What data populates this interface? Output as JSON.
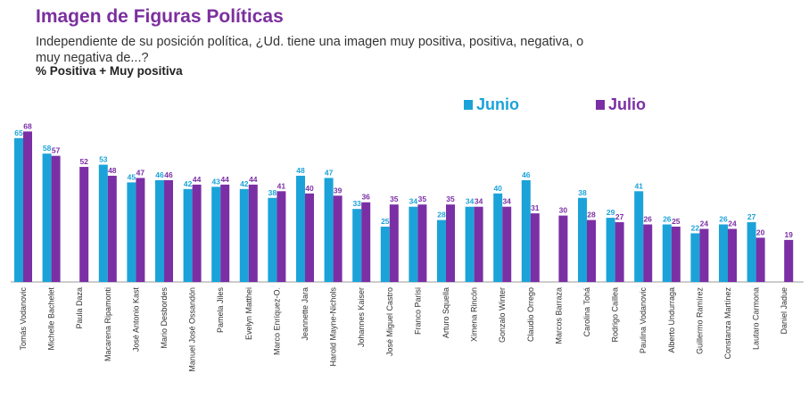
{
  "title": "Imagen de Figuras Políticas",
  "subtitle": "Independiente de su posición política, ¿Ud. tiene una imagen muy positiva, positiva, negativa, o muy negativa de...?",
  "measure": "% Positiva + Muy positiva",
  "colors": {
    "junio": "#1ba3d9",
    "julio": "#7b2fa5",
    "title": "#7b2f9e"
  },
  "chart_data": {
    "type": "bar",
    "categories": [
      "Tomás Vodanovic",
      "Michelle Bachelet",
      "Paula Daza",
      "Macarena Ripamonti",
      "José Antonio Kast",
      "Mario Desbordes",
      "Manuel José Ossandón",
      "Pamela Jiles",
      "Evelyn Matthei",
      "Marco Enríquez-O.",
      "Jeannette Jara",
      "Harold Mayne-Nichols",
      "Johannes Kaiser",
      "José Miguel Castro",
      "Franco Parisi",
      "Arturo Squella",
      "Ximena Rincón",
      "Gonzalo Winter",
      "Claudio Orrego",
      "Marcos Barraza",
      "Carolina Tohá",
      "Rodrigo Caillea",
      "Paulina Vodanovic",
      "Alberto Undurraga",
      "Guillermo Ramírez",
      "Constanza Martínez",
      "Lautaro Carmona",
      "Daniel Jadue"
    ],
    "series": [
      {
        "name": "Junio",
        "values": [
          65,
          58,
          null,
          53,
          45,
          46,
          42,
          43,
          42,
          38,
          48,
          47,
          33,
          25,
          34,
          28,
          34,
          40,
          46,
          null,
          38,
          29,
          41,
          26,
          22,
          26,
          27,
          null
        ]
      },
      {
        "name": "Julio",
        "values": [
          68,
          57,
          52,
          48,
          47,
          46,
          44,
          44,
          44,
          41,
          40,
          39,
          36,
          35,
          35,
          35,
          34,
          34,
          31,
          30,
          28,
          27,
          26,
          25,
          24,
          24,
          20,
          19
        ]
      }
    ],
    "legend_position": "top-right",
    "grid": false
  }
}
